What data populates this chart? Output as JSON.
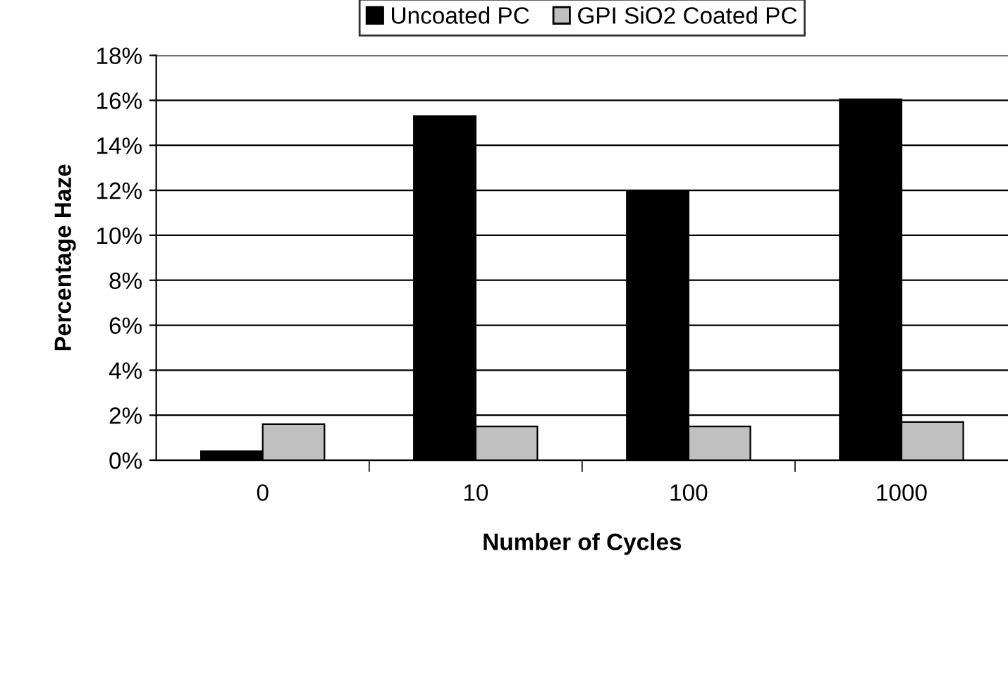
{
  "chart_data": {
    "type": "bar",
    "xlabel": "Number of Cycles",
    "ylabel": "Percentage Haze",
    "categories": [
      "0",
      "10",
      "100",
      "1000"
    ],
    "series": [
      {
        "name": "Uncoated PC",
        "color": "#000000",
        "values": [
          0.4,
          15.3,
          12.0,
          16.05
        ]
      },
      {
        "name": "GPI SiO2 Coated PC",
        "color": "#c0c0c0",
        "values": [
          1.6,
          1.5,
          1.5,
          1.7
        ]
      }
    ],
    "ylim": [
      0,
      18
    ],
    "yticks": [
      {
        "value": 0,
        "label": "0%"
      },
      {
        "value": 2,
        "label": "2%"
      },
      {
        "value": 4,
        "label": "4%"
      },
      {
        "value": 6,
        "label": "6%"
      },
      {
        "value": 8,
        "label": "8%"
      },
      {
        "value": 10,
        "label": "10%"
      },
      {
        "value": 12,
        "label": "12%"
      },
      {
        "value": 14,
        "label": "14%"
      },
      {
        "value": 16,
        "label": "16%"
      },
      {
        "value": 18,
        "label": "18%"
      }
    ],
    "grid": "y",
    "legend": "top"
  }
}
